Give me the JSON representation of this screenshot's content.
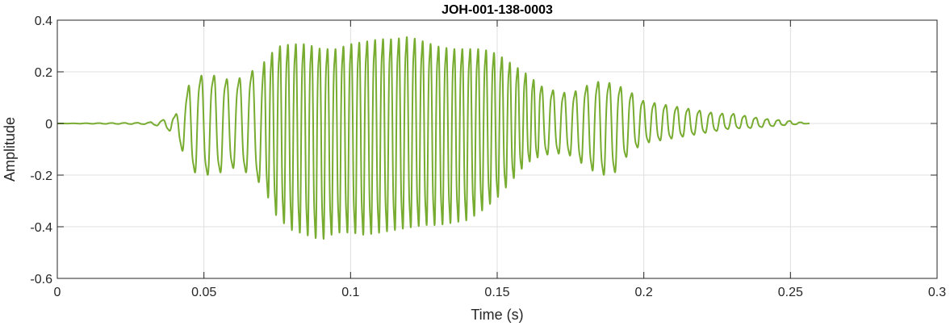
{
  "chart_data": {
    "type": "line",
    "title": "JOH-001-138-0003",
    "xlabel": "Time (s)",
    "ylabel": "Amplitude",
    "xlim": [
      0,
      0.3
    ],
    "ylim": [
      -0.6,
      0.4
    ],
    "xticks": [
      0,
      0.05,
      0.1,
      0.15,
      0.2,
      0.25,
      0.3
    ],
    "xtick_labels": [
      "0",
      "0.05",
      "0.1",
      "0.15",
      "0.2",
      "0.25",
      "0.3"
    ],
    "yticks": [
      -0.6,
      -0.4,
      -0.2,
      0,
      0.2,
      0.4
    ],
    "ytick_labels": [
      "-0.6",
      "-0.4",
      "-0.2",
      "0",
      "0.2",
      "0.4"
    ],
    "grid": true,
    "series": [
      {
        "color": "#77ac30",
        "envelope": {
          "t": [
            0,
            0.03,
            0.035,
            0.04,
            0.043,
            0.045,
            0.05,
            0.055,
            0.06,
            0.065,
            0.07,
            0.075,
            0.08,
            0.085,
            0.09,
            0.095,
            0.1,
            0.105,
            0.11,
            0.115,
            0.12,
            0.125,
            0.13,
            0.135,
            0.14,
            0.145,
            0.15,
            0.155,
            0.16,
            0.165,
            0.17,
            0.175,
            0.18,
            0.185,
            0.19,
            0.195,
            0.2,
            0.205,
            0.21,
            0.215,
            0.22,
            0.225,
            0.23,
            0.235,
            0.24,
            0.245,
            0.25,
            0.2565
          ],
          "max": [
            0,
            0.003,
            0.01,
            0.03,
            0.08,
            0.16,
            0.2,
            0.19,
            0.17,
            0.2,
            0.24,
            0.31,
            0.32,
            0.32,
            0.3,
            0.3,
            0.32,
            0.33,
            0.34,
            0.34,
            0.35,
            0.33,
            0.31,
            0.3,
            0.3,
            0.3,
            0.28,
            0.24,
            0.2,
            0.15,
            0.13,
            0.12,
            0.15,
            0.17,
            0.16,
            0.13,
            0.09,
            0.08,
            0.07,
            0.06,
            0.05,
            0.04,
            0.04,
            0.03,
            0.02,
            0.015,
            0.01,
            0
          ],
          "min": [
            0,
            -0.003,
            -0.01,
            -0.04,
            -0.12,
            -0.19,
            -0.21,
            -0.2,
            -0.18,
            -0.2,
            -0.25,
            -0.38,
            -0.43,
            -0.45,
            -0.47,
            -0.44,
            -0.44,
            -0.45,
            -0.44,
            -0.43,
            -0.42,
            -0.41,
            -0.41,
            -0.4,
            -0.39,
            -0.35,
            -0.3,
            -0.23,
            -0.16,
            -0.13,
            -0.12,
            -0.13,
            -0.17,
            -0.21,
            -0.2,
            -0.12,
            -0.08,
            -0.07,
            -0.06,
            -0.05,
            -0.04,
            -0.03,
            -0.02,
            -0.02,
            -0.015,
            -0.01,
            -0.005,
            0
          ]
        }
      }
    ]
  }
}
